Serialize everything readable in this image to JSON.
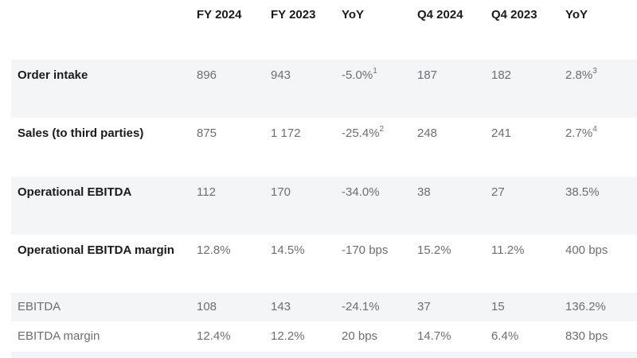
{
  "colors": {
    "band": "#f4f5f7",
    "heading_text": "#1b1b1b",
    "value_text": "#6d6e71",
    "background": "#ffffff"
  },
  "chart_data": {
    "type": "table",
    "columns": [
      "",
      "FY 2024",
      "FY 2023",
      "YoY",
      "Q4 2024",
      "Q4 2023",
      "YoY"
    ],
    "rows": [
      {
        "label": "Order intake",
        "values": [
          {
            "text": "896"
          },
          {
            "text": "943"
          },
          {
            "text": "-5.0%",
            "sup": "1"
          },
          {
            "text": "187"
          },
          {
            "text": "182"
          },
          {
            "text": "2.8%",
            "sup": "3"
          }
        ]
      },
      {
        "label": "Sales (to third parties)",
        "values": [
          {
            "text": "875"
          },
          {
            "text": "1 172"
          },
          {
            "text": "-25.4%",
            "sup": "2"
          },
          {
            "text": "248"
          },
          {
            "text": "241"
          },
          {
            "text": "2.7%",
            "sup": "4"
          }
        ]
      },
      {
        "label": "Operational EBITDA",
        "values": [
          {
            "text": "112"
          },
          {
            "text": "170"
          },
          {
            "text": "-34.0%"
          },
          {
            "text": "38"
          },
          {
            "text": "27"
          },
          {
            "text": "38.5%"
          }
        ]
      },
      {
        "label": "Operational EBITDA margin",
        "values": [
          {
            "text": "12.8%"
          },
          {
            "text": "14.5%"
          },
          {
            "text": "-170 bps"
          },
          {
            "text": "15.2%"
          },
          {
            "text": "11.2%"
          },
          {
            "text": "400 bps"
          }
        ]
      },
      {
        "label": "EBITDA",
        "values": [
          {
            "text": "108"
          },
          {
            "text": "143"
          },
          {
            "text": "-24.1%"
          },
          {
            "text": "37"
          },
          {
            "text": "15"
          },
          {
            "text": "136.2%"
          }
        ]
      },
      {
        "label": "EBITDA margin",
        "values": [
          {
            "text": "12.4%"
          },
          {
            "text": "12.2%"
          },
          {
            "text": "20 bps"
          },
          {
            "text": "14.7%"
          },
          {
            "text": "6.4%"
          },
          {
            "text": "830 bps"
          }
        ]
      }
    ]
  }
}
